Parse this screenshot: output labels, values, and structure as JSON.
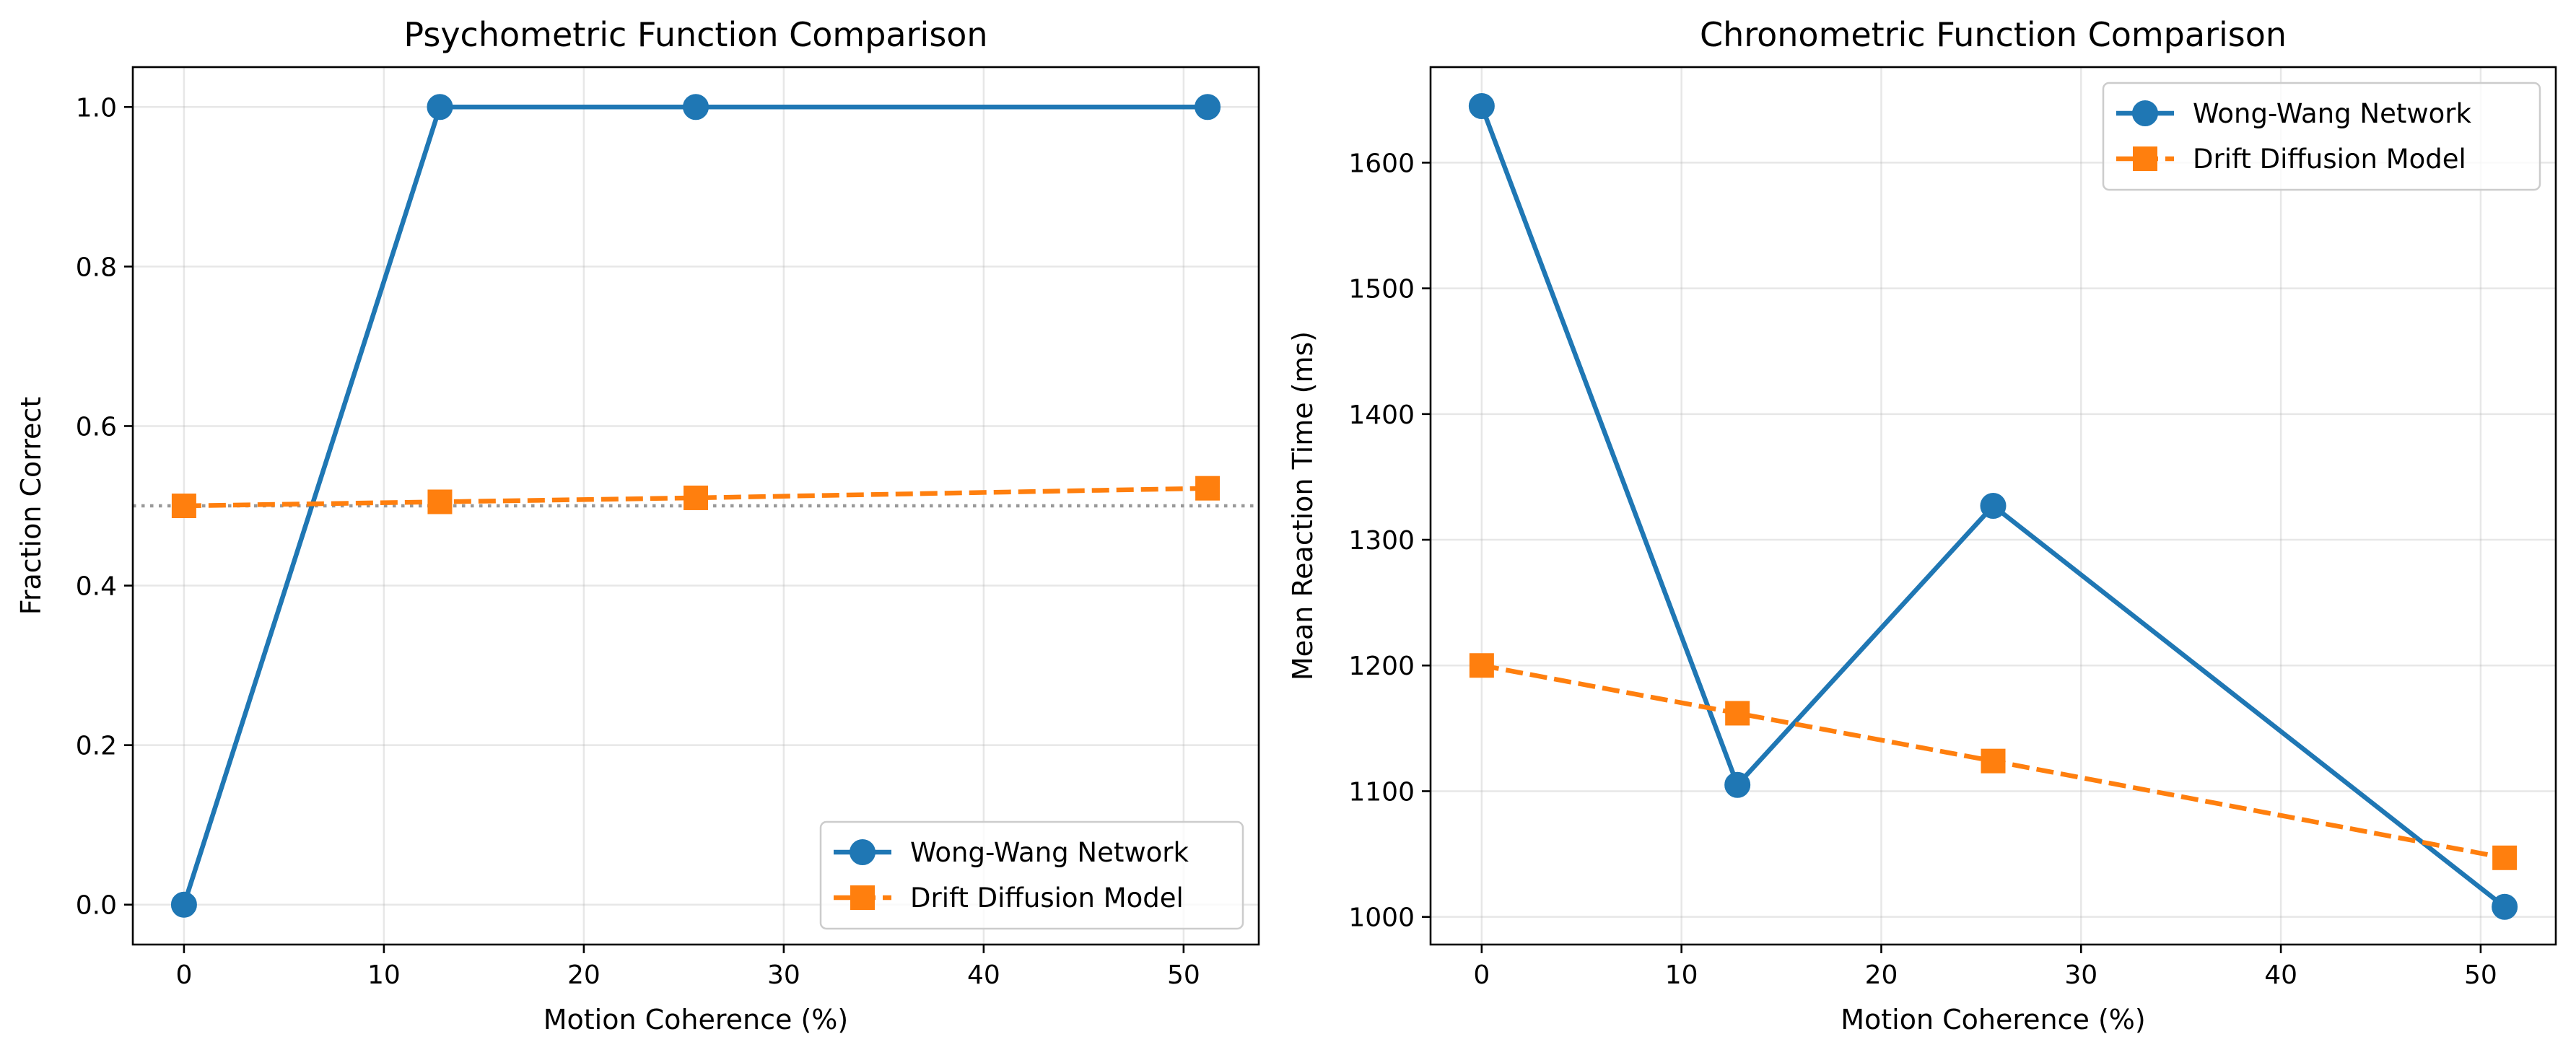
{
  "chart_data": [
    {
      "type": "line",
      "title": "Psychometric Function Comparison",
      "xlabel": "Motion Coherence (%)",
      "ylabel": "Fraction Correct",
      "xlim": [
        -2.56,
        53.76
      ],
      "ylim": [
        -0.05,
        1.05
      ],
      "xticks": [
        0,
        10,
        20,
        30,
        40,
        50
      ],
      "yticks": [
        0.0,
        0.2,
        0.4,
        0.6,
        0.8,
        1.0
      ],
      "xtick_labels": [
        "0",
        "10",
        "20",
        "30",
        "40",
        "50"
      ],
      "ytick_labels": [
        "0.0",
        "0.2",
        "0.4",
        "0.6",
        "0.8",
        "1.0"
      ],
      "grid": true,
      "legend_position": "lower-right",
      "reference_line": {
        "y": 0.5,
        "style": "dotted",
        "color": "#999999"
      },
      "series": [
        {
          "name": "Wong-Wang Network",
          "color": "#1f77b4",
          "line_style": "solid",
          "marker": "circle",
          "x": [
            0,
            12.8,
            25.6,
            51.2
          ],
          "y": [
            0.0,
            1.0,
            1.0,
            1.0
          ]
        },
        {
          "name": "Drift Diffusion Model",
          "color": "#ff7f0e",
          "line_style": "dashed",
          "marker": "square",
          "x": [
            0,
            12.8,
            25.6,
            51.2
          ],
          "y": [
            0.5,
            0.505,
            0.51,
            0.522
          ]
        }
      ]
    },
    {
      "type": "line",
      "title": "Chronometric Function Comparison",
      "xlabel": "Motion Coherence (%)",
      "ylabel": "Mean Reaction Time (ms)",
      "xlim": [
        -2.56,
        53.76
      ],
      "ylim": [
        978,
        1676
      ],
      "xticks": [
        0,
        10,
        20,
        30,
        40,
        50
      ],
      "yticks": [
        1000,
        1100,
        1200,
        1300,
        1400,
        1500,
        1600
      ],
      "xtick_labels": [
        "0",
        "10",
        "20",
        "30",
        "40",
        "50"
      ],
      "ytick_labels": [
        "1000",
        "1100",
        "1200",
        "1300",
        "1400",
        "1500",
        "1600"
      ],
      "grid": true,
      "legend_position": "upper-right",
      "series": [
        {
          "name": "Wong-Wang Network",
          "color": "#1f77b4",
          "line_style": "solid",
          "marker": "circle",
          "x": [
            0,
            12.8,
            25.6,
            51.2
          ],
          "y": [
            1645,
            1105,
            1327,
            1008
          ]
        },
        {
          "name": "Drift Diffusion Model",
          "color": "#ff7f0e",
          "line_style": "dashed",
          "marker": "square",
          "x": [
            0,
            12.8,
            25.6,
            51.2
          ],
          "y": [
            1200,
            1162,
            1124,
            1047
          ]
        }
      ]
    }
  ]
}
